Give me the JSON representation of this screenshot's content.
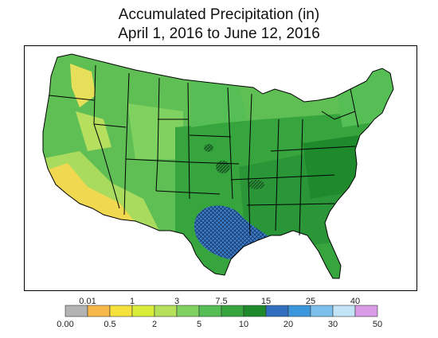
{
  "title": {
    "line1": "Accumulated Precipitation (in)",
    "line2": "April 1, 2016 to June 12, 2016"
  },
  "legend": {
    "upper_labels": [
      "0.01",
      "1",
      "3",
      "7.5",
      "15",
      "25",
      "40"
    ],
    "lower_labels": [
      "0.00",
      "0.5",
      "2",
      "5",
      "10",
      "20",
      "30",
      "50"
    ],
    "colors": [
      "#b3b3b3",
      "#f7b84a",
      "#f6e03c",
      "#d8ec3a",
      "#b4e05a",
      "#7fd160",
      "#55bf55",
      "#37a53e",
      "#1f8a2c",
      "#2f6fbd",
      "#3c96dc",
      "#7cc1ee",
      "#c3e3f7",
      "#d99be6"
    ]
  },
  "colors": {
    "dry_west": "#f0d850",
    "light_green": "#a9dc5e",
    "mid_green": "#6cc45a",
    "green": "#46b04a",
    "dark_green": "#2a9638",
    "deep_green": "#1c7f2c",
    "wettest_blue": "#2f6fbd",
    "border": "#000000"
  }
}
